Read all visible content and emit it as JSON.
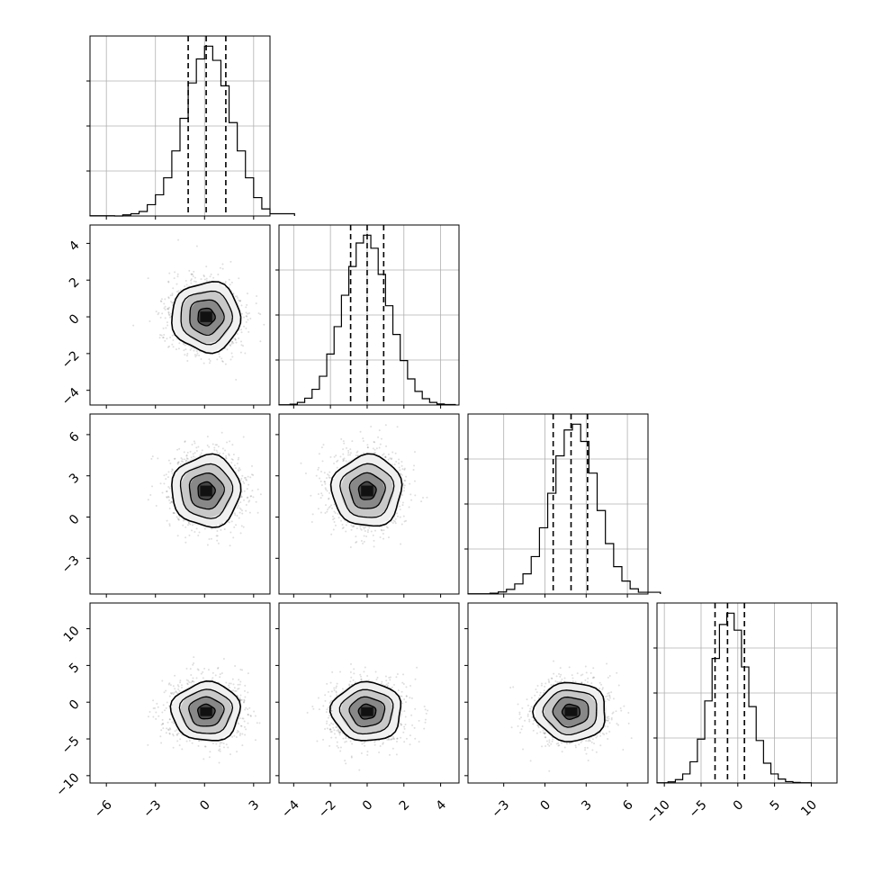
{
  "chart_data": {
    "type": "corner",
    "grid": true,
    "params": [
      {
        "index": 0,
        "range": [
          -7.0,
          4.0
        ],
        "ticks": [
          -6,
          -3,
          0,
          3
        ],
        "tick_labels": [
          "−6",
          "−3",
          "0",
          "3"
        ],
        "quantiles": [
          -1.0,
          0.1,
          1.3
        ],
        "mean": 0.1,
        "sd": 1.05,
        "hist_bins": [
          {
            "x0": -7.0,
            "count": 1
          },
          {
            "x0": -5.5,
            "count": 0
          },
          {
            "x0": -5.0,
            "count": 4
          },
          {
            "x0": -4.5,
            "count": 8
          },
          {
            "x0": -4.0,
            "count": 16
          },
          {
            "x0": -3.5,
            "count": 40
          },
          {
            "x0": -3.0,
            "count": 75
          },
          {
            "x0": -2.5,
            "count": 135
          },
          {
            "x0": -2.0,
            "count": 230
          },
          {
            "x0": -1.5,
            "count": 345
          },
          {
            "x0": -1.0,
            "count": 470
          },
          {
            "x0": -0.5,
            "count": 555
          },
          {
            "x0": 0.0,
            "count": 600
          },
          {
            "x0": 0.5,
            "count": 550
          },
          {
            "x0": 1.0,
            "count": 460
          },
          {
            "x0": 1.5,
            "count": 330
          },
          {
            "x0": 2.0,
            "count": 230
          },
          {
            "x0": 2.5,
            "count": 135
          },
          {
            "x0": 3.0,
            "count": 65
          },
          {
            "x0": 3.5,
            "count": 25
          },
          {
            "x0": 4.0,
            "count": 8
          }
        ]
      },
      {
        "index": 1,
        "range": [
          -4.8,
          5.0
        ],
        "ticks": [
          -4,
          -2,
          0,
          2,
          4
        ],
        "tick_labels": [
          "−4",
          "−2",
          "0",
          "2",
          "4"
        ],
        "quantiles": [
          -0.9,
          0.0,
          0.9
        ],
        "mean": 0.0,
        "sd": 0.95,
        "hist_bins": [
          {
            "x0": -4.8,
            "count": 1
          },
          {
            "x0": -4.2,
            "count": 3
          },
          {
            "x0": -3.8,
            "count": 10
          },
          {
            "x0": -3.4,
            "count": 26
          },
          {
            "x0": -3.0,
            "count": 60
          },
          {
            "x0": -2.6,
            "count": 110
          },
          {
            "x0": -2.2,
            "count": 195
          },
          {
            "x0": -1.8,
            "count": 300
          },
          {
            "x0": -1.4,
            "count": 420
          },
          {
            "x0": -1.0,
            "count": 530
          },
          {
            "x0": -0.6,
            "count": 620
          },
          {
            "x0": -0.2,
            "count": 650
          },
          {
            "x0": 0.2,
            "count": 600
          },
          {
            "x0": 0.6,
            "count": 500
          },
          {
            "x0": 1.0,
            "count": 380
          },
          {
            "x0": 1.4,
            "count": 270
          },
          {
            "x0": 1.8,
            "count": 170
          },
          {
            "x0": 2.2,
            "count": 100
          },
          {
            "x0": 2.6,
            "count": 52
          },
          {
            "x0": 3.0,
            "count": 24
          },
          {
            "x0": 3.4,
            "count": 10
          },
          {
            "x0": 3.8,
            "count": 4
          },
          {
            "x0": 4.2,
            "count": 2
          }
        ]
      },
      {
        "index": 2,
        "range": [
          -5.6,
          7.5
        ],
        "ticks": [
          -3,
          0,
          3,
          6
        ],
        "tick_labels": [
          "−3",
          "0",
          "3",
          "6"
        ],
        "quantiles": [
          0.6,
          1.9,
          3.1
        ],
        "mean": 1.9,
        "sd": 1.3,
        "hist_bins": [
          {
            "x0": -5.6,
            "count": 1
          },
          {
            "x0": -4.0,
            "count": 3
          },
          {
            "x0": -3.4,
            "count": 7
          },
          {
            "x0": -2.8,
            "count": 16
          },
          {
            "x0": -2.2,
            "count": 35
          },
          {
            "x0": -1.6,
            "count": 70
          },
          {
            "x0": -1.0,
            "count": 130
          },
          {
            "x0": -0.4,
            "count": 230
          },
          {
            "x0": 0.2,
            "count": 350
          },
          {
            "x0": 0.8,
            "count": 480
          },
          {
            "x0": 1.4,
            "count": 570
          },
          {
            "x0": 2.0,
            "count": 590
          },
          {
            "x0": 2.6,
            "count": 530
          },
          {
            "x0": 3.2,
            "count": 420
          },
          {
            "x0": 3.8,
            "count": 290
          },
          {
            "x0": 4.4,
            "count": 175
          },
          {
            "x0": 5.0,
            "count": 95
          },
          {
            "x0": 5.6,
            "count": 45
          },
          {
            "x0": 6.2,
            "count": 18
          },
          {
            "x0": 6.8,
            "count": 6
          }
        ]
      },
      {
        "index": 3,
        "range": [
          -11.0,
          13.5
        ],
        "ticks": [
          -10,
          -5,
          0,
          5,
          10
        ],
        "tick_labels": [
          "−10",
          "−5",
          "0",
          "5",
          "10"
        ],
        "quantiles": [
          -3.1,
          -1.4,
          0.9
        ],
        "mean": -1.3,
        "sd": 2.0,
        "hist_bins": [
          {
            "x0": -11.0,
            "count": 1
          },
          {
            "x0": -9.5,
            "count": 4
          },
          {
            "x0": -8.5,
            "count": 12
          },
          {
            "x0": -7.5,
            "count": 32
          },
          {
            "x0": -6.5,
            "count": 75
          },
          {
            "x0": -5.5,
            "count": 155
          },
          {
            "x0": -4.5,
            "count": 290
          },
          {
            "x0": -3.5,
            "count": 440
          },
          {
            "x0": -2.5,
            "count": 560
          },
          {
            "x0": -1.5,
            "count": 600
          },
          {
            "x0": -0.5,
            "count": 540
          },
          {
            "x0": 0.5,
            "count": 410
          },
          {
            "x0": 1.5,
            "count": 270
          },
          {
            "x0": 2.5,
            "count": 150
          },
          {
            "x0": 3.5,
            "count": 70
          },
          {
            "x0": 4.5,
            "count": 32
          },
          {
            "x0": 5.5,
            "count": 14
          },
          {
            "x0": 6.5,
            "count": 5
          },
          {
            "x0": 7.5,
            "count": 2
          },
          {
            "x0": 8.5,
            "count": 1
          }
        ]
      }
    ],
    "scatter_color": "#000000",
    "contour_sigmas": [
      0.5,
      1.0,
      1.5,
      2.0
    ],
    "line_color": "#000000"
  }
}
